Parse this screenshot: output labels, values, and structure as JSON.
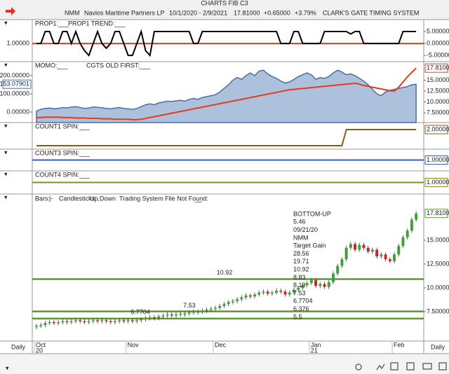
{
  "window_title": "CHARTS FIB C3",
  "header": {
    "symbol": "NMM",
    "name": "Navios Maritime Partners LP",
    "range": "10/1/2020 - 2/9/2021",
    "last": "17.81000",
    "change": "+0.65000",
    "pct": "+3.79%",
    "system": "CLARK'S GATE TIMING SYSTEM"
  },
  "x_axis_label": "Daily",
  "categories": [
    "Oct",
    null,
    null,
    null,
    null,
    null,
    null,
    null,
    null,
    null,
    null,
    null,
    null,
    null,
    null,
    null,
    null,
    null,
    null,
    null,
    null,
    "Nov",
    null,
    null,
    null,
    null,
    null,
    null,
    null,
    null,
    null,
    null,
    null,
    null,
    null,
    null,
    null,
    null,
    null,
    null,
    null,
    "Dec",
    null,
    null,
    null,
    null,
    null,
    null,
    null,
    null,
    null,
    null,
    null,
    null,
    null,
    null,
    null,
    null,
    null,
    null,
    null,
    null,
    null,
    "Jan",
    null,
    null,
    null,
    null,
    null,
    null,
    null,
    null,
    null,
    null,
    null,
    null,
    null,
    null,
    null,
    null,
    null,
    null,
    "Feb",
    null,
    null,
    null,
    null,
    null
  ],
  "category_years": [
    "20",
    null,
    null,
    null,
    null,
    null,
    null,
    null,
    null,
    null,
    null,
    null,
    null,
    null,
    null,
    null,
    null,
    null,
    null,
    null,
    null,
    null,
    null,
    null,
    null,
    null,
    null,
    null,
    null,
    null,
    null,
    null,
    null,
    null,
    null,
    null,
    null,
    null,
    null,
    null,
    null,
    null,
    null,
    null,
    null,
    null,
    null,
    null,
    null,
    null,
    null,
    null,
    null,
    null,
    null,
    null,
    null,
    null,
    null,
    null,
    null,
    null,
    null,
    "21",
    null,
    null,
    null,
    null,
    null,
    null,
    null,
    null,
    null,
    null,
    null,
    null,
    null,
    null,
    null,
    null,
    null,
    null,
    null,
    null,
    null,
    null,
    null,
    null,
    null
  ],
  "chart_data": [
    {
      "type": "step",
      "title": "PROP1:___",
      "title2": "PROP1 TREND:___",
      "color": "#000000",
      "ref_color": "#e03c1f",
      "ref": 0,
      "left_label": "1.00000",
      "values": [
        0,
        0,
        5,
        5,
        0,
        0,
        5,
        5,
        0,
        5,
        0,
        -3,
        -5,
        0,
        5,
        0,
        -2,
        0,
        5,
        5,
        0,
        -5,
        -5,
        0,
        5,
        -3,
        -5,
        5,
        5,
        5,
        5,
        5,
        5,
        5,
        5,
        5,
        0,
        0,
        5,
        5,
        5,
        5,
        5,
        5,
        5,
        5,
        5,
        5,
        5,
        5,
        5,
        5,
        5,
        5,
        5,
        5,
        0,
        0,
        0,
        5,
        5,
        0,
        0,
        0,
        0,
        0,
        5,
        5,
        5,
        5,
        5,
        5,
        4,
        5,
        5,
        0,
        0,
        0,
        0,
        0,
        0,
        0,
        0,
        0,
        5,
        5,
        5,
        5
      ],
      "ylim": [
        -7.6,
        10
      ],
      "yticks": [
        {
          "value": 5,
          "label": "5.00000"
        },
        {
          "value": 0,
          "label": "0.00000"
        },
        {
          "value": -5,
          "label": "-5.00000"
        }
      ]
    },
    {
      "type": "area-line",
      "title": "MOMO:___",
      "title2": "CGTS OLD FIRST:___",
      "series": [
        {
          "color": "#6a8cbf",
          "axis": "y2",
          "values": [
            5,
            15,
            20,
            22,
            18,
            20,
            25,
            22,
            28,
            30,
            25,
            20,
            22,
            28,
            26,
            24,
            20,
            18,
            22,
            25,
            20,
            18,
            15,
            20,
            30,
            40,
            45,
            40,
            50,
            55,
            60,
            58,
            62,
            65,
            60,
            70,
            75,
            70,
            80,
            85,
            90,
            95,
            110,
            130,
            150,
            175,
            190,
            180,
            200,
            215,
            200,
            225,
            230,
            210,
            195,
            185,
            170,
            160,
            165,
            180,
            195,
            205,
            215,
            205,
            180,
            190,
            185,
            195,
            215,
            230,
            220,
            205,
            210,
            200,
            185,
            170,
            150,
            125,
            100,
            90,
            110,
            120,
            125,
            130,
            135,
            140,
            150,
            153.07901
          ]
        },
        {
          "color": "#e03c1f",
          "values": [
            6.4,
            6.4,
            6.5,
            6.5,
            6.5,
            6.5,
            6.4,
            6.4,
            6.4,
            6.3,
            6.3,
            6.3,
            6.2,
            6.2,
            6.2,
            6.1,
            6.1,
            6.1,
            6.0,
            6.0,
            6.0,
            6.0,
            5.9,
            5.9,
            6.0,
            6.2,
            6.4,
            6.6,
            6.8,
            7.0,
            7.2,
            7.4,
            7.6,
            7.8,
            8.0,
            8.2,
            8.4,
            8.6,
            8.8,
            9.0,
            9.2,
            9.4,
            9.6,
            9.8,
            10.0,
            10.2,
            10.4,
            10.6,
            10.8,
            11.0,
            11.2,
            11.4,
            11.6,
            11.8,
            12.0,
            12.2,
            12.4,
            12.6,
            12.8,
            12.9,
            13.0,
            13.1,
            13.2,
            13.3,
            13.4,
            13.5,
            13.6,
            13.7,
            13.8,
            13.9,
            14.0,
            14.1,
            14.2,
            14.3,
            14.1,
            13.8,
            13.6,
            13.4,
            13.2,
            13.0,
            12.8,
            12.6,
            12.5,
            13.4,
            14.6,
            15.8,
            16.8,
            17.81
          ]
        }
      ],
      "ylim": [
        5.24,
        19.3
      ],
      "yticks": [
        {
          "value": 15,
          "label": "15.00000"
        },
        {
          "value": 12.5,
          "label": "12.50000"
        },
        {
          "value": 10,
          "label": "10.00000"
        },
        {
          "value": 7.5,
          "label": "7.50000"
        }
      ],
      "y_current": {
        "value": 17.81,
        "label": "17.81000"
      },
      "y2lim": [
        -57.7,
        277
      ],
      "y2ticks": [
        {
          "value": 200,
          "label": "200.00000"
        },
        {
          "value": 100,
          "label": "100.00000"
        },
        {
          "value": 0,
          "label": "0.00000"
        }
      ],
      "y2_current": {
        "value": 153.07901,
        "label": "153.07901"
      }
    },
    {
      "type": "step",
      "title": "COUNT1 SPIN:___",
      "color": "#8b5a1a",
      "values": [
        0,
        0,
        0,
        0,
        0,
        0,
        0,
        0,
        0,
        0,
        0,
        0,
        0,
        0,
        0,
        0,
        0,
        0,
        0,
        0,
        0,
        0,
        0,
        0,
        0,
        0,
        0,
        0,
        0,
        0,
        0,
        0,
        0,
        0,
        0,
        0,
        0,
        0,
        0,
        0,
        0,
        0,
        0,
        0,
        0,
        0,
        0,
        0,
        0,
        0,
        0,
        0,
        0,
        0,
        0,
        0,
        0,
        0,
        0,
        0,
        0,
        0,
        0,
        0,
        0,
        0,
        0,
        0,
        0,
        0,
        0,
        2,
        2,
        2,
        2,
        2,
        2,
        2,
        2,
        2,
        2,
        2,
        2,
        2,
        2,
        2,
        2,
        2
      ],
      "ylim": [
        -0.43,
        2.87
      ],
      "y_current": {
        "value": 2,
        "label": "2.00000"
      }
    },
    {
      "type": "hline",
      "title": "COUNT3 SPIN:___",
      "color": "#3a5fa8",
      "value": 1,
      "ylim": [
        0,
        2
      ],
      "y_current": {
        "value": 1,
        "label": "1.00000"
      }
    },
    {
      "type": "hline",
      "title": "COUNT4 SPIN:___",
      "color": "#8a8a20",
      "value": 1,
      "ylim": [
        0,
        2
      ],
      "y_current": {
        "value": 1,
        "label": "1.00000"
      }
    },
    {
      "type": "candlestick",
      "title": "Bars:",
      "bars_mark": "|-",
      "candles_label": "Candlesticks:",
      "up_label": "Up",
      "sep": ",",
      "down_label": "Down",
      "tsf_label": "Trading System File Not Found:",
      "blank": "__",
      "up_color": "#3da23a",
      "down_color": "#c8262a",
      "level_color": "#5a9a2a",
      "values": [
        6.0,
        6.1,
        6.3,
        6.4,
        6.3,
        6.4,
        6.5,
        6.4,
        6.5,
        6.6,
        6.5,
        6.4,
        6.5,
        6.6,
        6.5,
        6.6,
        6.5,
        6.4,
        6.5,
        6.6,
        6.5,
        6.6,
        6.5,
        6.6,
        6.7,
        6.8,
        6.9,
        6.8,
        7.0,
        7.1,
        7.2,
        7.1,
        7.2,
        7.3,
        7.3,
        7.4,
        7.5,
        7.5,
        7.6,
        7.7,
        7.8,
        7.9,
        8.1,
        8.3,
        8.5,
        8.6,
        8.8,
        9.0,
        9.2,
        9.1,
        9.3,
        9.5,
        9.6,
        9.4,
        9.5,
        9.7,
        9.6,
        9.3,
        9.5,
        9.8,
        10.0,
        10.3,
        10.5,
        10.8,
        10.2,
        10.4,
        10.1,
        10.6,
        11.5,
        12.3,
        13.0,
        14.2,
        14.6,
        14.0,
        14.5,
        14.2,
        13.8,
        14.0,
        13.3,
        13.5,
        13.0,
        12.8,
        13.5,
        14.4,
        15.3,
        16.0,
        17.16,
        17.81
      ],
      "levels": [
        {
          "value": 10.92,
          "label": "10.92"
        },
        {
          "value": 7.53,
          "label": "7.53"
        },
        {
          "value": 6.7704,
          "label": "6.7704"
        }
      ],
      "annotations": [
        "BOTTOM-UP",
        "5.46",
        "09/21/20",
        "NMM",
        "Target Gain",
        "28.56",
        "19.71",
        "10.92",
        "8.83",
        "8.19",
        "7.53",
        "6.7704",
        "6.376",
        "5.5"
      ],
      "ylim": [
        4.41,
        19.85
      ],
      "yticks": [
        {
          "value": 15,
          "label": "15.00000"
        },
        {
          "value": 12.5,
          "label": "12.50000"
        },
        {
          "value": 10,
          "label": "10.00000"
        },
        {
          "value": 7.5,
          "label": "7.50000"
        }
      ],
      "y_current": {
        "value": 17.81,
        "label": "17.81000"
      }
    }
  ]
}
